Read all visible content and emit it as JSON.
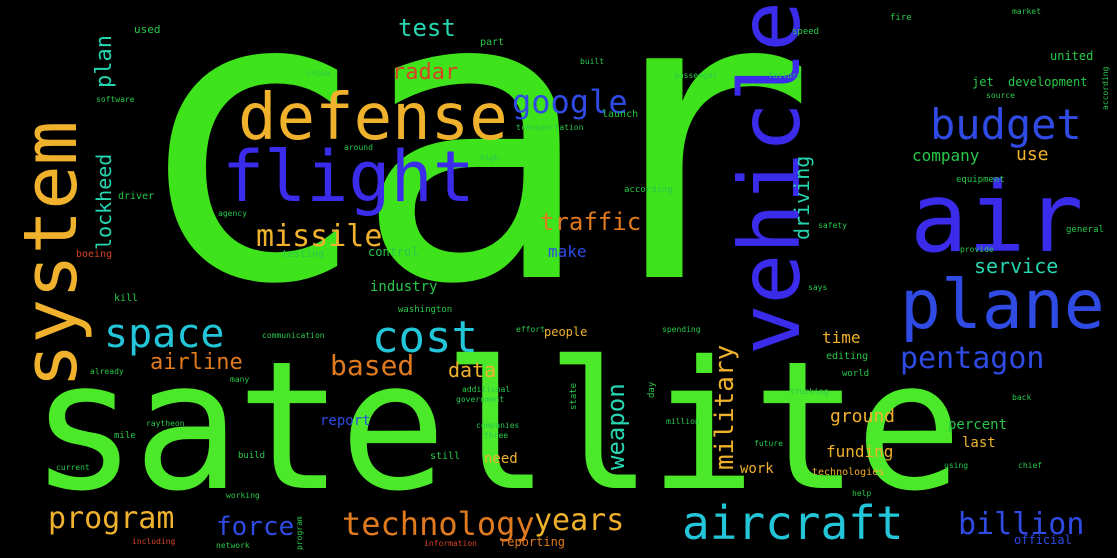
{
  "words": {
    "car": "car",
    "satellite": "satellite",
    "vehicle": "vehicle",
    "system": "system",
    "air": "air",
    "flight": "flight",
    "defense": "defense",
    "plane": "plane",
    "budget": "budget",
    "cost": "cost",
    "space": "space",
    "aircraft": "aircraft",
    "missile": "missile",
    "google": "google",
    "pentagon": "pentagon",
    "billion": "billion",
    "program": "program",
    "technology": "technology",
    "years": "years",
    "force": "force",
    "based": "based",
    "military": "military",
    "airline": "airline",
    "traffic": "traffic",
    "radar": "radar",
    "test": "test",
    "weapon": "weapon",
    "data": "data",
    "service": "service",
    "company": "company",
    "use": "use",
    "plan": "plan",
    "lockheed": "lockheed",
    "driving": "driving",
    "make": "make",
    "time": "time",
    "ground": "ground",
    "funding": "funding",
    "percent": "percent",
    "last": "last",
    "work": "work",
    "need": "need",
    "report": "report",
    "industry": "industry",
    "control": "control",
    "development": "development",
    "jet": "jet",
    "united": "united",
    "people": "people",
    "used": "used",
    "part": "part",
    "launch": "launch",
    "testing": "testing",
    "boeing": "boeing",
    "state": "state",
    "still": "still",
    "official": "official",
    "reporting": "reporting",
    "kill": "kill",
    "driver": "driver",
    "software": "software",
    "editing": "editing",
    "technologies": "technologies",
    "washington": "washington",
    "according": "according",
    "equipment": "equipment",
    "fire": "fire",
    "speed": "speed",
    "market": "market",
    "china": "china",
    "passenger": "passenger",
    "transportation": "transportation",
    "built": "built",
    "high": "high",
    "general": "general",
    "mile": "mile",
    "build": "build",
    "world": "world",
    "back": "back",
    "million": "million",
    "additional": "additional",
    "government": "government",
    "companies": "companies",
    "chief": "chief",
    "help": "help",
    "including": "including",
    "network": "network",
    "working": "working",
    "current": "current",
    "spending": "spending",
    "effort": "effort",
    "already": "already",
    "many": "many",
    "says": "says",
    "safety": "safety",
    "provide": "provide",
    "day": "day",
    "three": "three",
    "program2": "program",
    "information": "information",
    "communication": "communication",
    "raytheon": "raytheon",
    "using": "using",
    "future": "future",
    "trucking": "trucking",
    "around": "around",
    "agency": "agency",
    "source": "source",
    "failure": "failure",
    "according2": "according"
  }
}
